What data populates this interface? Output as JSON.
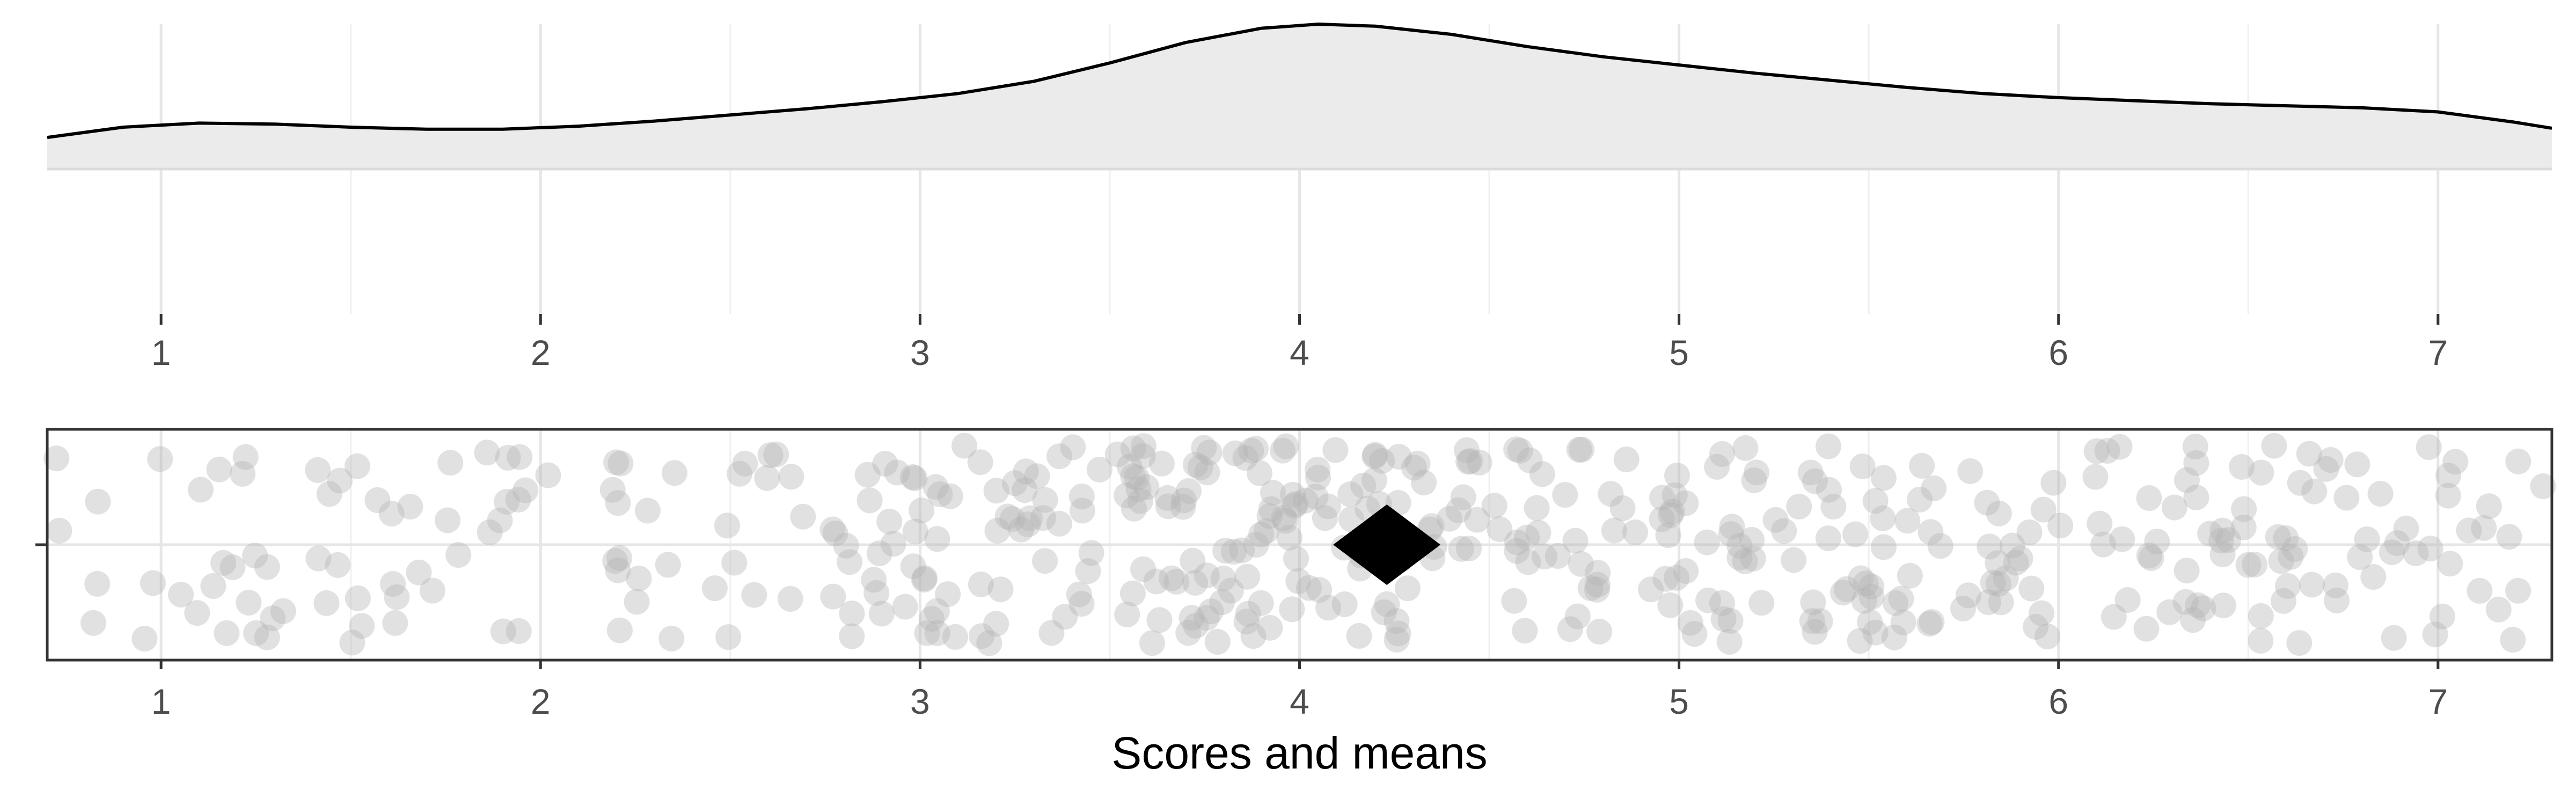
{
  "chart_data": [
    {
      "type": "area",
      "panel": "density",
      "xlim": [
        0.7,
        7.3
      ],
      "x_ticks": [
        "1",
        "2",
        "3",
        "4",
        "5",
        "6",
        "7"
      ],
      "x": [
        0.7,
        0.9,
        1.1,
        1.3,
        1.5,
        1.7,
        1.9,
        2.1,
        2.3,
        2.5,
        2.7,
        2.9,
        3.1,
        3.3,
        3.5,
        3.7,
        3.9,
        4.05,
        4.2,
        4.4,
        4.6,
        4.8,
        5.0,
        5.2,
        5.4,
        5.6,
        5.8,
        6.0,
        6.2,
        6.4,
        6.6,
        6.8,
        7.0,
        7.2,
        7.3
      ],
      "density": [
        0.155,
        0.205,
        0.225,
        0.22,
        0.205,
        0.195,
        0.195,
        0.21,
        0.235,
        0.265,
        0.295,
        0.33,
        0.37,
        0.43,
        0.52,
        0.62,
        0.69,
        0.71,
        0.7,
        0.66,
        0.6,
        0.55,
        0.51,
        0.47,
        0.435,
        0.4,
        0.37,
        0.35,
        0.335,
        0.32,
        0.31,
        0.3,
        0.28,
        0.23,
        0.2
      ],
      "fill_color": "#ebebeb",
      "line_color": "#000000",
      "grid": true
    },
    {
      "type": "scatter",
      "panel": "jitter",
      "xlim": [
        0.7,
        7.3
      ],
      "x_ticks": [
        "1",
        "2",
        "3",
        "4",
        "5",
        "6",
        "7"
      ],
      "xlabel": "Scores and means",
      "n_points": 500,
      "point_color": "#b3b3b3",
      "mean": 4.23,
      "mean_marker": "diamond",
      "mean_color": "#000000",
      "grid": true
    }
  ]
}
